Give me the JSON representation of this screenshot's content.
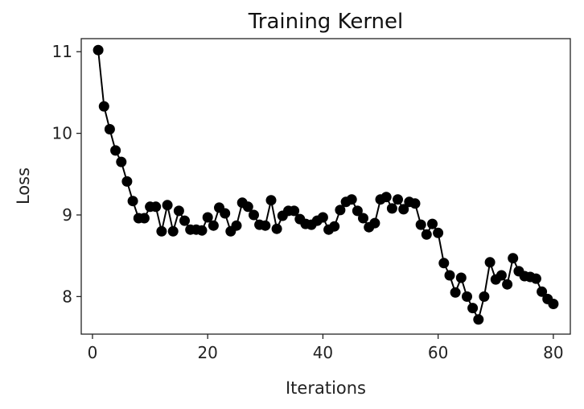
{
  "chart_data": {
    "type": "line",
    "title": "Training Kernel",
    "xlabel": "Iterations",
    "ylabel": "Loss",
    "xlim": [
      -1.95,
      82.95
    ],
    "ylim": [
      7.54,
      11.16
    ],
    "xticks": [
      0,
      20,
      40,
      60,
      80
    ],
    "yticks": [
      8,
      9,
      10,
      11
    ],
    "grid": false,
    "legend": "none",
    "line_color": "#000000",
    "series": [
      {
        "x": [
          1,
          2,
          3,
          4,
          5,
          6,
          7,
          8,
          9,
          10,
          11,
          12,
          13,
          14,
          15,
          16,
          17,
          18,
          19,
          20,
          21,
          22,
          23,
          24,
          25,
          26,
          27,
          28,
          29,
          30,
          31,
          32,
          33,
          34,
          35,
          36,
          37,
          38,
          39,
          40,
          41,
          42,
          43,
          44,
          45,
          46,
          47,
          48,
          49,
          50,
          51,
          52,
          53,
          54,
          55,
          56,
          57,
          58,
          59,
          60,
          61,
          62,
          63,
          64,
          65,
          66,
          67,
          68,
          69,
          70,
          71,
          72,
          73,
          74,
          75,
          76,
          77,
          78,
          79,
          80
        ],
        "y": [
          11.02,
          10.33,
          10.05,
          9.79,
          9.65,
          9.41,
          9.17,
          8.96,
          8.96,
          9.1,
          9.1,
          8.8,
          9.12,
          8.8,
          9.05,
          8.93,
          8.82,
          8.82,
          8.81,
          8.97,
          8.87,
          9.09,
          9.02,
          8.8,
          8.87,
          9.15,
          9.1,
          9.0,
          8.88,
          8.87,
          9.18,
          8.83,
          8.99,
          9.05,
          9.05,
          8.95,
          8.89,
          8.88,
          8.93,
          8.97,
          8.82,
          8.86,
          9.06,
          9.16,
          9.19,
          9.05,
          8.96,
          8.85,
          8.9,
          9.19,
          9.22,
          9.08,
          9.19,
          9.07,
          9.16,
          9.14,
          8.88,
          8.76,
          8.89,
          8.78,
          8.41,
          8.26,
          8.05,
          8.23,
          8.0,
          7.86,
          7.72,
          8.0,
          8.42,
          8.21,
          8.26,
          8.15,
          8.47,
          8.31,
          8.25,
          8.24,
          8.22,
          8.06,
          7.97,
          7.91
        ]
      }
    ]
  }
}
